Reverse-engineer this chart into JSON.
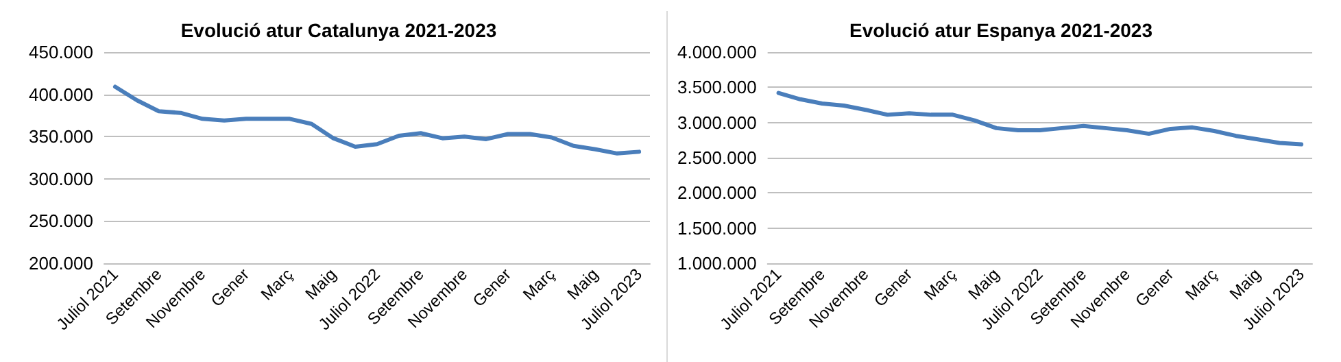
{
  "chart_data": [
    {
      "type": "line",
      "title": "Evolució atur Catalunya 2021-2023",
      "categories": [
        "Juliol 2021",
        null,
        "Setembre",
        null,
        "Novembre",
        null,
        "Gener",
        null,
        "Març",
        null,
        "Maig",
        null,
        "Juliol 2022",
        null,
        "Setembre",
        null,
        "Novembre",
        null,
        "Gener",
        null,
        "Març",
        null,
        "Maig",
        null,
        "Juliol 2023"
      ],
      "series": [
        {
          "color": "#4a7ebb",
          "values": [
            409000,
            393000,
            380000,
            378000,
            371000,
            369000,
            371000,
            371000,
            371000,
            365000,
            348000,
            338000,
            341000,
            351000,
            354000,
            348000,
            350000,
            347000,
            353000,
            353000,
            349000,
            339000,
            335000,
            330000,
            332000
          ]
        }
      ],
      "ylim": [
        200000,
        450000
      ],
      "yticks": [
        {
          "value": 200000,
          "label": "200.000"
        },
        {
          "value": 250000,
          "label": "250.000"
        },
        {
          "value": 300000,
          "label": "300.000"
        },
        {
          "value": 350000,
          "label": "350.000"
        },
        {
          "value": 400000,
          "label": "400.000"
        },
        {
          "value": 450000,
          "label": "450.000"
        }
      ],
      "grid": "y",
      "marker": "none",
      "line_style": "solid"
    },
    {
      "type": "line",
      "title": "Evolució atur Espanya 2021-2023",
      "categories": [
        "Juliol 2021",
        null,
        "Setembre",
        null,
        "Novembre",
        null,
        "Gener",
        null,
        "Març",
        null,
        "Maig",
        null,
        "Juliol 2022",
        null,
        "Setembre",
        null,
        "Novembre",
        null,
        "Gener",
        null,
        "Març",
        null,
        "Maig",
        null,
        "Juliol 2023"
      ],
      "series": [
        {
          "color": "#4a7ebb",
          "values": [
            3420000,
            3330000,
            3270000,
            3240000,
            3180000,
            3110000,
            3130000,
            3110000,
            3110000,
            3030000,
            2920000,
            2890000,
            2890000,
            2920000,
            2950000,
            2920000,
            2890000,
            2840000,
            2910000,
            2930000,
            2880000,
            2810000,
            2760000,
            2710000,
            2690000
          ]
        }
      ],
      "ylim": [
        1000000,
        4000000
      ],
      "yticks": [
        {
          "value": 1000000,
          "label": "1.000.000"
        },
        {
          "value": 1500000,
          "label": "1.500.000"
        },
        {
          "value": 2000000,
          "label": "2.000.000"
        },
        {
          "value": 2500000,
          "label": "2.500.000"
        },
        {
          "value": 3000000,
          "label": "3.000.000"
        },
        {
          "value": 3500000,
          "label": "3.500.000"
        },
        {
          "value": 4000000,
          "label": "4.000.000"
        }
      ],
      "grid": "y",
      "marker": "none",
      "line_style": "solid"
    }
  ]
}
